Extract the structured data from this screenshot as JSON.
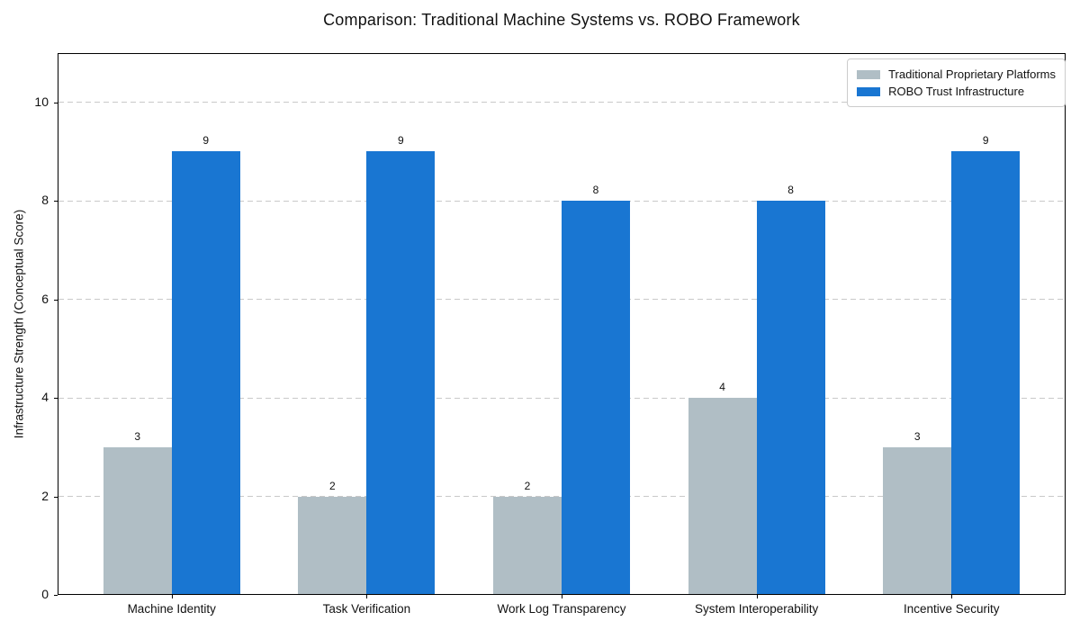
{
  "chart_data": {
    "type": "bar",
    "title": "Comparison: Traditional Machine Systems vs. ROBO Framework",
    "categories": [
      "Machine Identity",
      "Task Verification",
      "Work Log Transparency",
      "System Interoperability",
      "Incentive Security"
    ],
    "series": [
      {
        "name": "Traditional Proprietary Platforms",
        "color": "#b0bec5",
        "values": [
          3,
          2,
          2,
          4,
          3
        ]
      },
      {
        "name": "ROBO Trust Infrastructure",
        "color": "#1976d2",
        "values": [
          9,
          9,
          8,
          8,
          9
        ]
      }
    ],
    "xlabel": "",
    "ylabel": "Infrastructure Strength (Conceptual Score)",
    "yticks": [
      0,
      2,
      4,
      6,
      8,
      10
    ],
    "ylim": [
      0,
      11
    ],
    "grid": "horizontal-dashed",
    "grid_color": "#c9c9c9",
    "legend_position": "upper-right",
    "bar_value_labels": true,
    "value_labels_series_1": [
      "3",
      "2",
      "2",
      "4",
      "3"
    ],
    "value_labels_series_2": [
      "9",
      "9",
      "8",
      "8",
      "9"
    ]
  },
  "colors": {
    "background": "#ffffff",
    "spine": "#000000",
    "text": "#111111",
    "series_gray": "#b0bec5",
    "series_blue": "#1976d2"
  }
}
